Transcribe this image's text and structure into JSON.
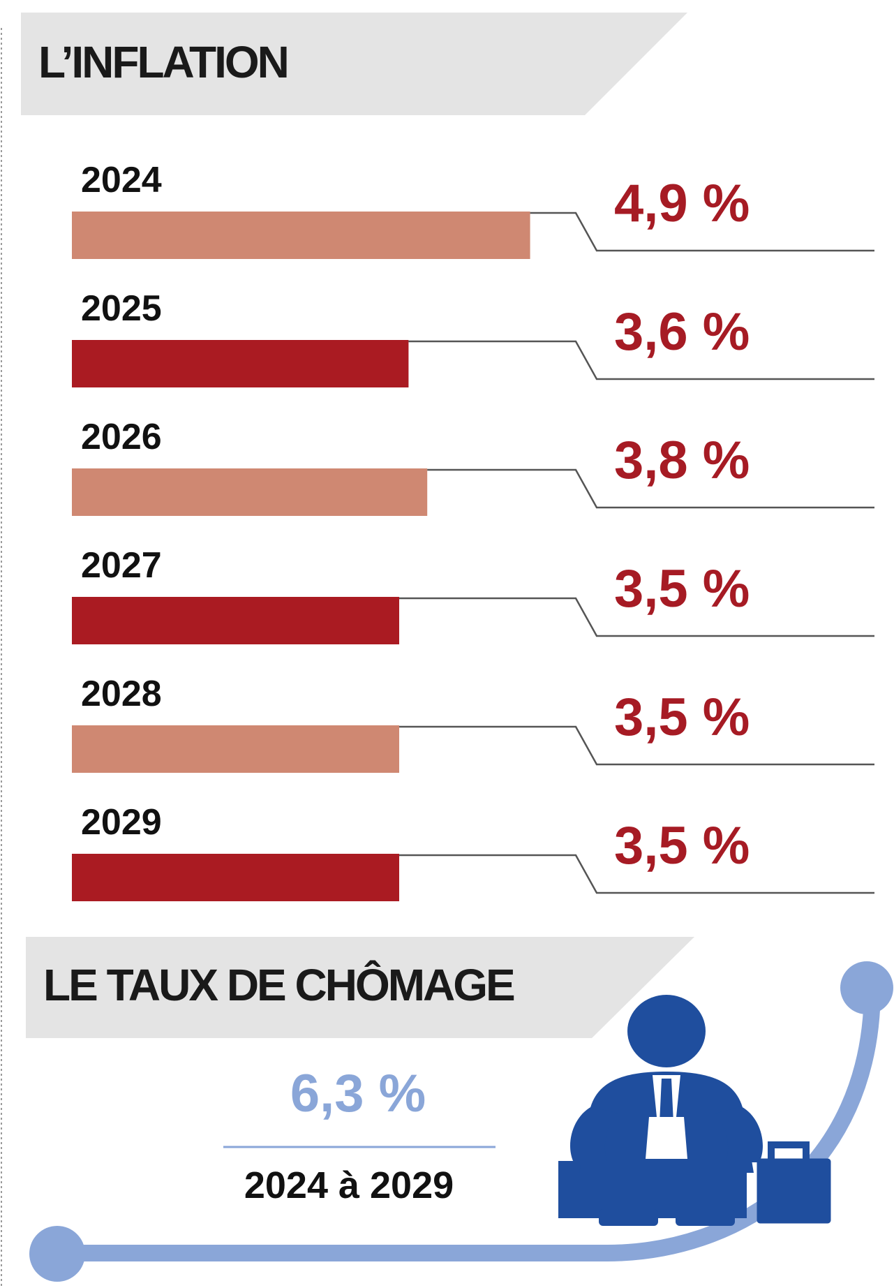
{
  "colors": {
    "bar_light": "#cf8872",
    "bar_dark": "#aa1b22",
    "value_text": "#a61b24",
    "accent_blue": "#8aa6d8",
    "figure_blue": "#1f4e9e",
    "banner_gray": "#e4e4e4"
  },
  "chart_data": {
    "type": "bar",
    "orientation": "horizontal",
    "title": "L’INFLATION",
    "categories": [
      "2024",
      "2025",
      "2026",
      "2027",
      "2028",
      "2029"
    ],
    "values": [
      4.9,
      3.6,
      3.8,
      3.5,
      3.5,
      3.5
    ],
    "value_labels": [
      "4,9 %",
      "3,6 %",
      "3,8 %",
      "3,5 %",
      "3,5 %",
      "3,5 %"
    ],
    "bar_colors": [
      "light",
      "dark",
      "light",
      "dark",
      "light",
      "dark"
    ],
    "unit": "%"
  },
  "unemployment": {
    "title": "LE TAUX DE CHÔMAGE",
    "value": "6,3 %",
    "period": "2024 à 2029",
    "figure_icon": "seated-dejected-person-icon",
    "briefcase_icon": "briefcase-icon"
  }
}
